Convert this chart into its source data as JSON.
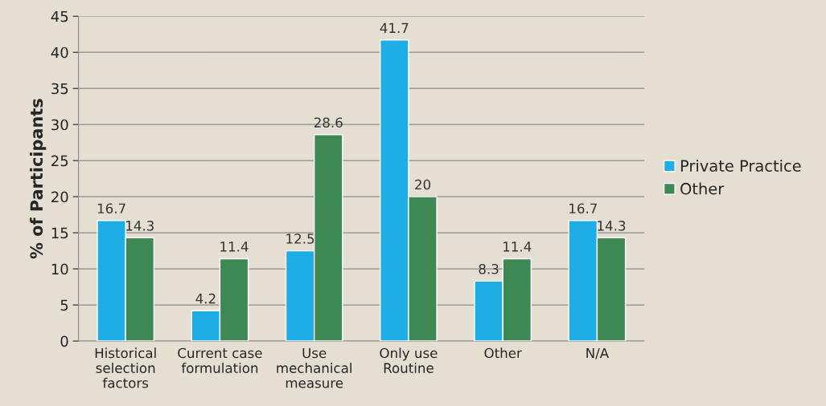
{
  "chart_data": {
    "type": "bar",
    "ylabel": "% of Participants",
    "categories": [
      "Historical\nselection\nfactors",
      "Current case\nformulation",
      "Use\nmechanical\nmeasure",
      "Only use\nRoutine",
      "Other",
      "N/A"
    ],
    "series": [
      {
        "name": "Private Practice",
        "color": "#1eaee5",
        "values": [
          16.7,
          4.2,
          12.5,
          41.7,
          8.3,
          16.7
        ]
      },
      {
        "name": "Other",
        "color": "#3e8953",
        "values": [
          14.3,
          11.4,
          28.6,
          20,
          11.4,
          14.3
        ]
      }
    ],
    "ylim": [
      0,
      45
    ],
    "yticks": [
      0,
      5,
      10,
      15,
      20,
      25,
      30,
      35,
      40,
      45
    ],
    "grid": "y",
    "legend": "right",
    "data_labels": true
  }
}
